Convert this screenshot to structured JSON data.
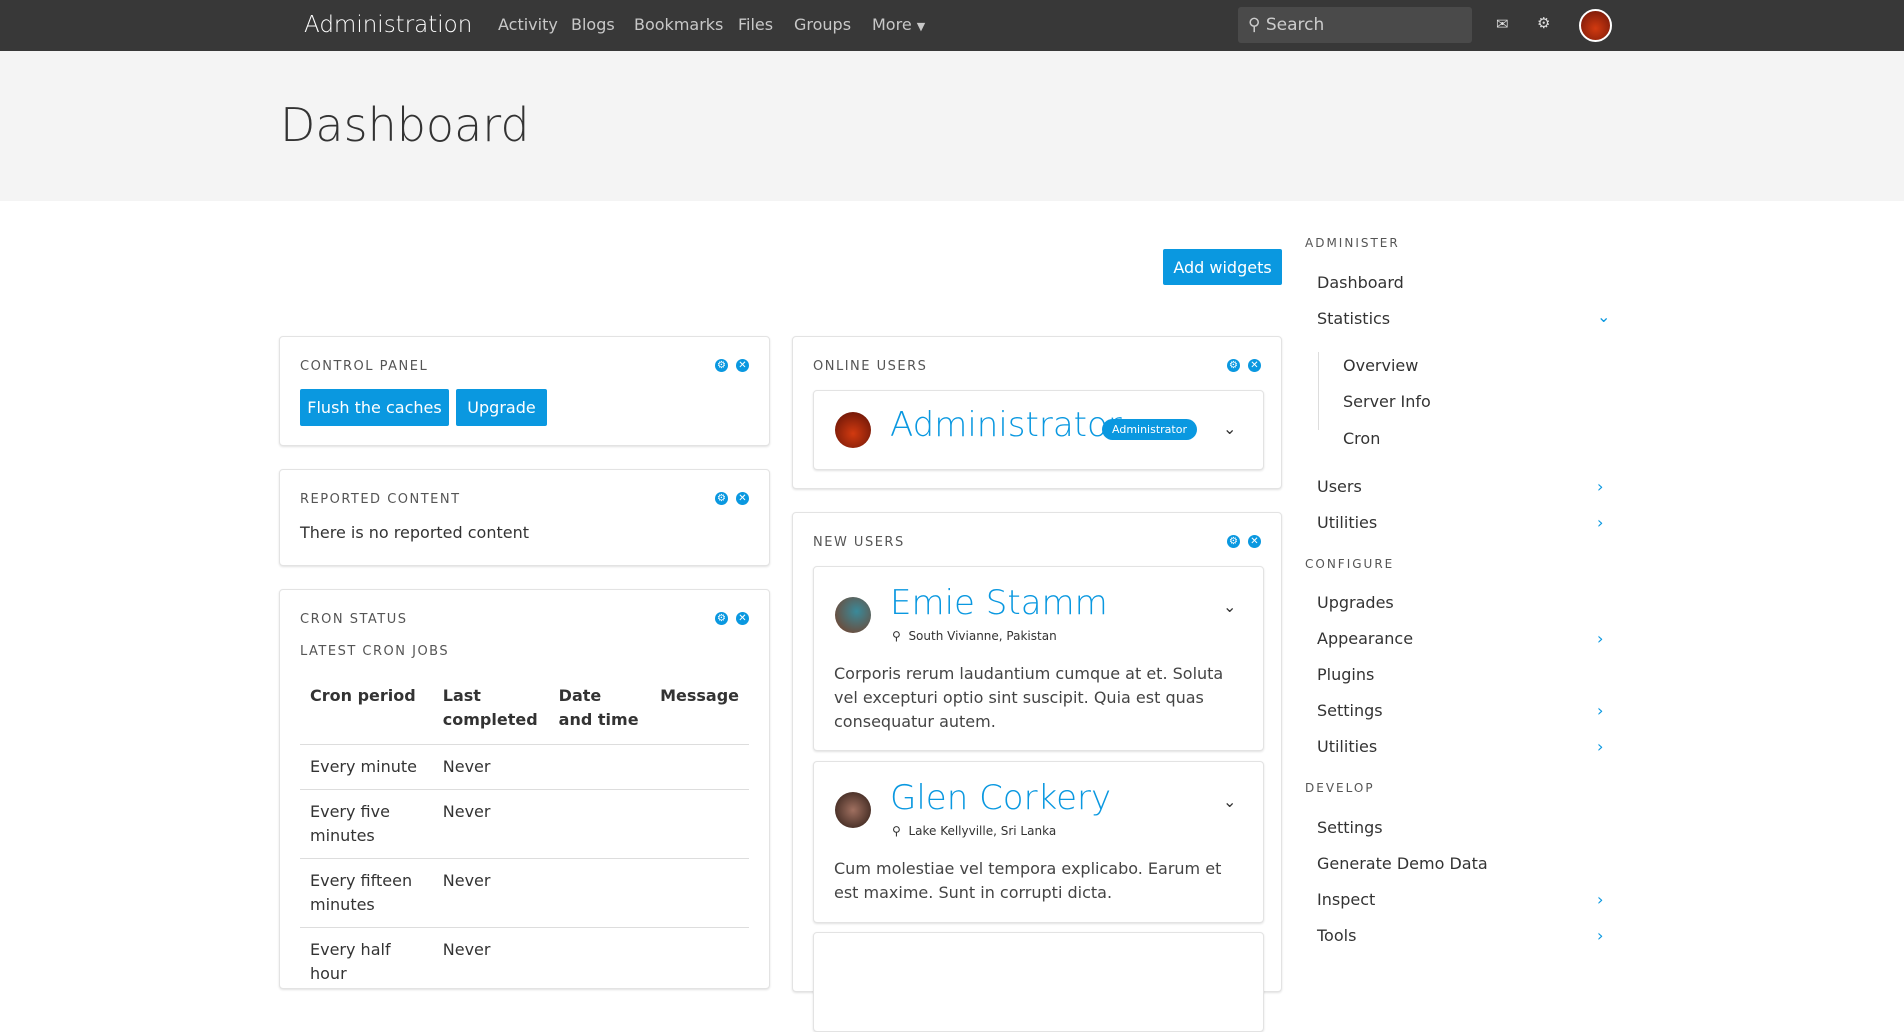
{
  "nav": {
    "brand": "Administration",
    "links": [
      "Activity",
      "Blogs",
      "Bookmarks",
      "Files",
      "Groups",
      "More"
    ],
    "search_placeholder": "Search"
  },
  "page": {
    "title": "Dashboard",
    "add_widgets": "Add widgets"
  },
  "colors": {
    "accent": "#0a98e0",
    "navbar": "#383838"
  },
  "control_panel": {
    "title": "CONTROL PANEL",
    "buttons": [
      "Flush the caches",
      "Upgrade"
    ]
  },
  "reported": {
    "title": "REPORTED CONTENT",
    "text": "There is no reported content"
  },
  "cron": {
    "title": "CRON STATUS",
    "subtitle": "LATEST CRON JOBS",
    "headers": [
      "Cron period",
      "Last completed",
      "Date and time",
      "Message"
    ],
    "rows": [
      [
        "Every minute",
        "Never"
      ],
      [
        "Every five minutes",
        "Never"
      ],
      [
        "Every fifteen minutes",
        "Never"
      ],
      [
        "Every half hour",
        "Never"
      ]
    ]
  },
  "online": {
    "title": "ONLINE USERS",
    "user": "Administrator",
    "badge": "Administrator"
  },
  "new_users": {
    "title": "NEW USERS",
    "users": [
      {
        "name": "Emie Stamm",
        "location": "South Vivianne, Pakistan",
        "bio": "Corporis rerum laudantium cumque at et. Soluta vel excepturi optio sint suscipit. Quia est quas consequatur autem."
      },
      {
        "name": "Glen Corkery",
        "location": "Lake Kellyville, Sri Lanka",
        "bio": "Cum molestiae vel tempora explicabo. Earum et est maxime. Sunt in corrupti dicta."
      }
    ]
  },
  "sidebar": {
    "administer": "ADMINISTER",
    "configure": "CONFIGURE",
    "develop": "DEVELOP",
    "admin_items": [
      "Dashboard",
      "Statistics",
      "Users",
      "Utilities"
    ],
    "stats_sub": [
      "Overview",
      "Server Info",
      "Cron"
    ],
    "config_items": [
      "Upgrades",
      "Appearance",
      "Plugins",
      "Settings",
      "Utilities"
    ],
    "develop_items": [
      "Settings",
      "Generate Demo Data",
      "Inspect",
      "Tools"
    ]
  }
}
